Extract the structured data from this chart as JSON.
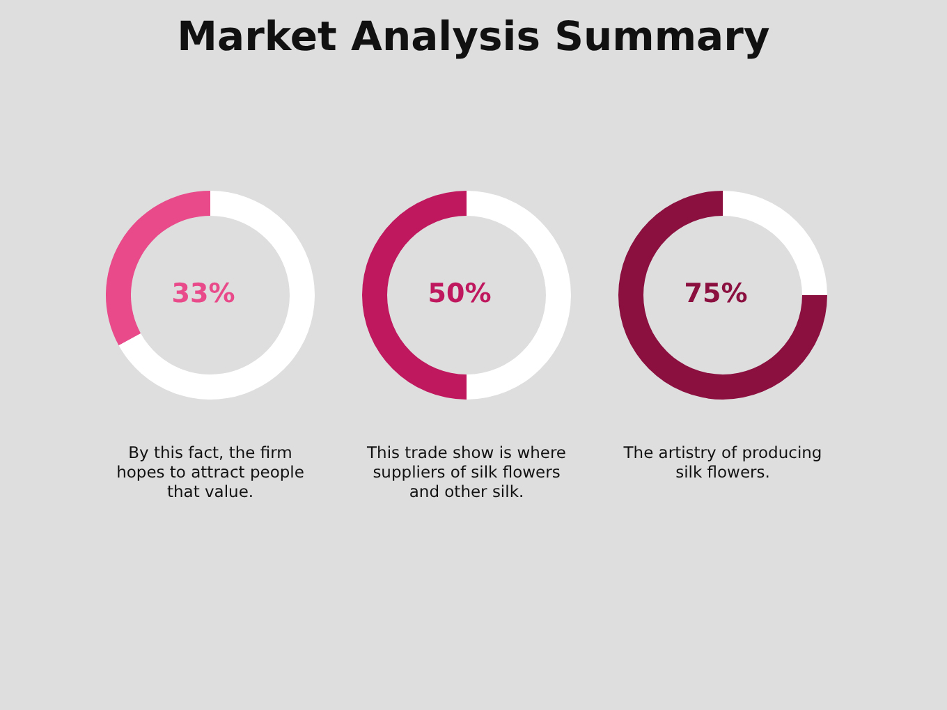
{
  "chart_data": [
    {
      "type": "donut",
      "title": "Market Analysis Summary",
      "categories": [
        null,
        null
      ],
      "values": [
        33,
        67
      ],
      "colors": [
        "#e84a8a",
        "#ffffff"
      ],
      "value_labels": [
        "33%",
        null
      ],
      "annotations": [
        "By this fact, the firm hopes to attract people that value."
      ]
    },
    {
      "type": "donut",
      "categories": [
        null,
        null
      ],
      "values": [
        50,
        50
      ],
      "colors": [
        "#c0185e",
        "#ffffff"
      ],
      "value_labels": [
        "50%",
        null
      ],
      "annotations": [
        "This trade show is where suppliers of silk flowers and other silk."
      ]
    },
    {
      "type": "donut",
      "categories": [
        null,
        null
      ],
      "values": [
        75,
        25
      ],
      "colors": [
        "#8b1040",
        "#ffffff"
      ],
      "value_labels": [
        "75%",
        null
      ],
      "annotations": [
        "The artistry of producing silk flowers."
      ]
    }
  ]
}
